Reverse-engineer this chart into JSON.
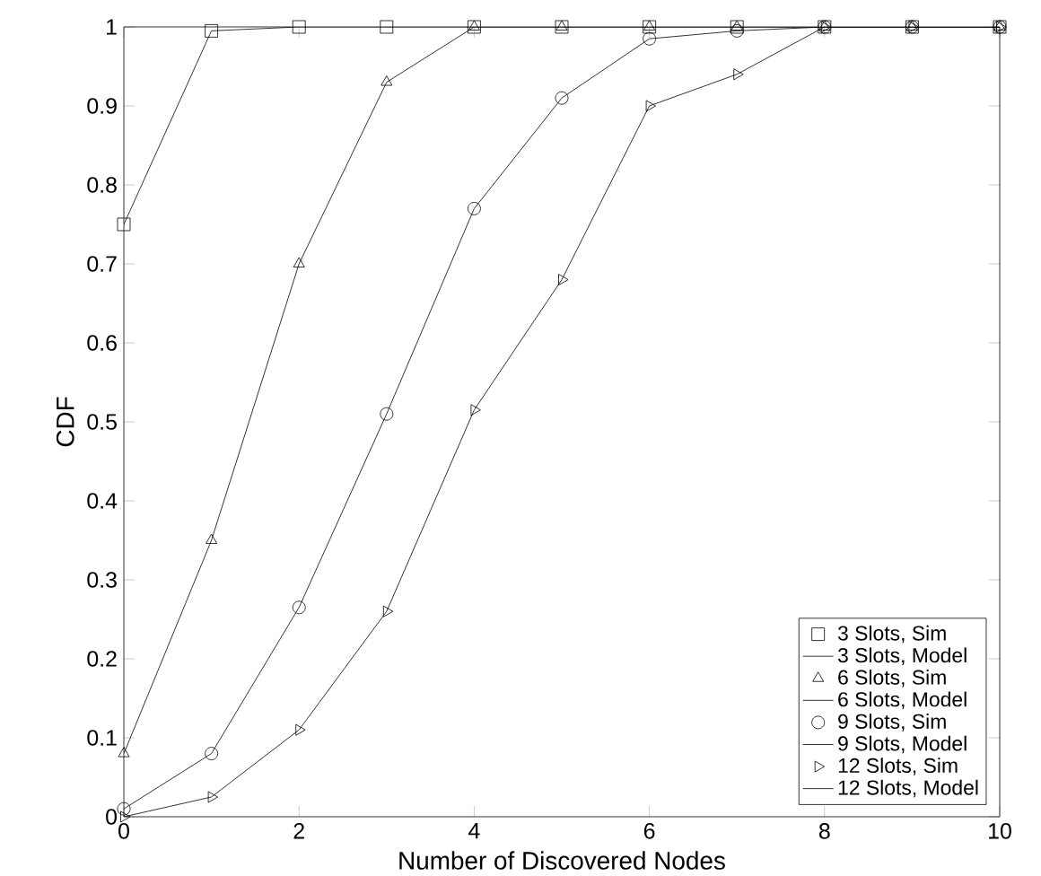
{
  "chart_data": {
    "type": "line",
    "xlabel": "Number of Discovered Nodes",
    "ylabel": "CDF",
    "x": [
      0,
      1,
      2,
      3,
      4,
      5,
      6,
      7,
      8,
      9,
      10
    ],
    "series": [
      {
        "name": "3 Slots, Sim",
        "type": "scatter",
        "marker": "square",
        "color": "#000000",
        "values": [
          0.75,
          0.995,
          1,
          1,
          1,
          1,
          1,
          1,
          1,
          1,
          1
        ]
      },
      {
        "name": "3 Slots, Model",
        "marker": "none",
        "line_style": "solid",
        "color": "#000000",
        "values": [
          0.75,
          0.995,
          1,
          1,
          1,
          1,
          1,
          1,
          1,
          1,
          1
        ]
      },
      {
        "name": "6 Slots, Sim",
        "type": "scatter",
        "marker": "triangle",
        "color": "#000000",
        "values": [
          0.08,
          0.35,
          0.7,
          0.93,
          1,
          1,
          1,
          1,
          1,
          1,
          1
        ]
      },
      {
        "name": "6 Slots, Model",
        "marker": "none",
        "line_style": "solid",
        "color": "#000000",
        "values": [
          0.08,
          0.35,
          0.7,
          0.93,
          1,
          1,
          1,
          1,
          1,
          1,
          1
        ]
      },
      {
        "name": "9 Slots, Sim",
        "type": "scatter",
        "marker": "circle",
        "color": "#000000",
        "values": [
          0.01,
          0.08,
          0.265,
          0.51,
          0.77,
          0.91,
          0.985,
          0.995,
          1,
          1,
          1
        ]
      },
      {
        "name": "9 Slots, Model",
        "marker": "none",
        "line_style": "solid",
        "color": "#000000",
        "values": [
          0.01,
          0.08,
          0.265,
          0.51,
          0.77,
          0.91,
          0.985,
          0.995,
          1,
          1,
          1
        ]
      },
      {
        "name": "12 Slots, Sim",
        "type": "scatter",
        "marker": "triangle-right",
        "color": "#000000",
        "values": [
          0,
          0.025,
          0.11,
          0.26,
          0.515,
          0.68,
          0.9,
          0.94,
          1,
          1,
          1
        ]
      },
      {
        "name": "12 Slots, Model",
        "marker": "none",
        "line_style": "solid",
        "color": "#000000",
        "values": [
          0,
          0.025,
          0.11,
          0.26,
          0.515,
          0.68,
          0.9,
          0.94,
          1,
          1,
          1
        ]
      }
    ],
    "xlim": [
      0,
      10
    ],
    "ylim": [
      0,
      1
    ],
    "xticks": [
      0,
      2,
      4,
      6,
      8,
      10
    ],
    "yticks": [
      0,
      0.1,
      0.2,
      0.3,
      0.4,
      0.5,
      0.6,
      0.7,
      0.8,
      0.9,
      1
    ],
    "grid": false,
    "legend": "bottom right"
  }
}
